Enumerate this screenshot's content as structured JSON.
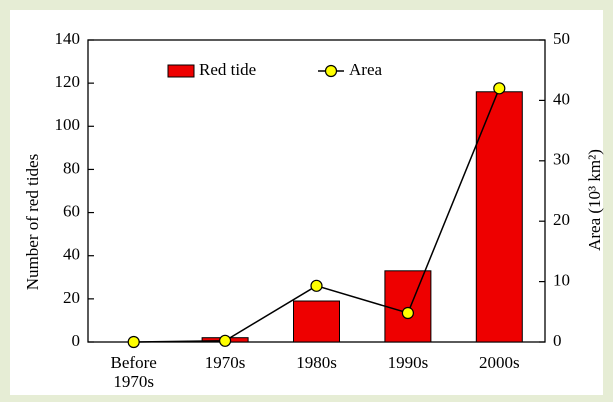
{
  "chart_data": {
    "type": "bar_line",
    "categories": [
      "Before 1970s",
      "1970s",
      "1980s",
      "1990s",
      "2000s"
    ],
    "series": [
      {
        "name": "Red tide",
        "type": "bar",
        "color": "#ee0000",
        "values": [
          0,
          2,
          19,
          33,
          116
        ]
      },
      {
        "name": "Area",
        "type": "line",
        "axis": "y2",
        "color": "#ffff00",
        "values": [
          0,
          0.2,
          9.3,
          4.8,
          42
        ]
      }
    ],
    "ylabel": "Number of red tides",
    "y2label": "Area (10³ km²)",
    "ylim": [
      0,
      140
    ],
    "yticks": [
      0,
      20,
      40,
      60,
      80,
      100,
      120,
      140
    ],
    "y2lim": [
      0,
      50
    ],
    "y2ticks": [
      0,
      10,
      20,
      30,
      40,
      50
    ],
    "grid": false
  }
}
